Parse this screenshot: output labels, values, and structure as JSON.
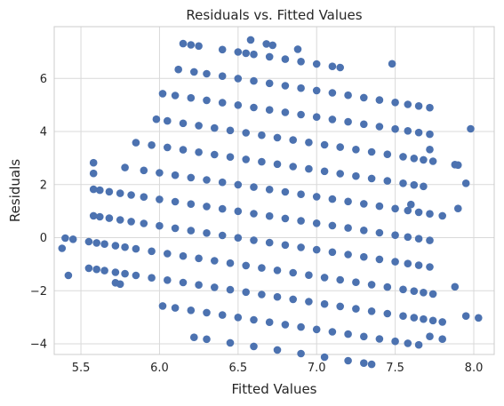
{
  "chart_data": {
    "type": "scatter",
    "title": "Residuals vs. Fitted Values",
    "xlabel": "Fitted Values",
    "ylabel": "Residuals",
    "xlim": [
      5.33,
      8.13
    ],
    "ylim": [
      -4.4,
      7.95
    ],
    "xticks": [
      5.5,
      6.0,
      6.5,
      7.0,
      7.5,
      8.0
    ],
    "xtick_labels": [
      "5.5",
      "6.0",
      "6.5",
      "7.0",
      "7.5",
      "8.0"
    ],
    "yticks": [
      -4,
      -2,
      0,
      2,
      4,
      6
    ],
    "ytick_labels": [
      "−4",
      "−2",
      "0",
      "2",
      "4",
      "6"
    ],
    "grid": true,
    "point_color": "#4c72b0",
    "bands": [
      {
        "intercept": -4,
        "x": [
          6.22,
          6.3,
          6.45,
          6.6,
          6.75,
          6.9,
          7.05,
          7.2,
          7.3,
          7.35
        ]
      },
      {
        "intercept": -3,
        "x": [
          6.02,
          6.1,
          6.2,
          6.3,
          6.4,
          6.5,
          6.6,
          6.7,
          6.8,
          6.9,
          7.0,
          7.1,
          7.2,
          7.3,
          7.4,
          7.5,
          7.58,
          7.65
        ]
      },
      {
        "intercept": -2,
        "x": [
          5.55,
          5.6,
          5.65,
          5.72,
          5.78,
          5.85,
          5.95,
          6.05,
          6.15,
          6.25,
          6.35,
          6.45,
          6.55,
          6.65,
          6.75,
          6.85,
          6.95,
          7.05,
          7.15,
          7.25,
          7.35,
          7.45,
          7.55,
          7.62,
          7.68,
          7.74,
          7.8
        ]
      },
      {
        "intercept": -1,
        "x": [
          5.4,
          5.45,
          5.55,
          5.6,
          5.65,
          5.72,
          5.78,
          5.85,
          5.95,
          6.05,
          6.15,
          6.25,
          6.35,
          6.45,
          6.55,
          6.65,
          6.75,
          6.85,
          6.95,
          7.05,
          7.15,
          7.25,
          7.35,
          7.45,
          7.55,
          7.62,
          7.68,
          7.74
        ]
      },
      {
        "intercept": 0,
        "x": [
          5.58,
          5.62,
          5.68,
          5.75,
          5.82,
          5.9,
          6.0,
          6.1,
          6.2,
          6.3,
          6.4,
          6.5,
          6.6,
          6.7,
          6.8,
          6.9,
          7.0,
          7.1,
          7.2,
          7.3,
          7.4,
          7.5,
          7.58,
          7.65,
          7.72
        ]
      },
      {
        "intercept": 1,
        "x": [
          5.58,
          5.62,
          5.68,
          5.75,
          5.82,
          5.9,
          6.0,
          6.1,
          6.2,
          6.3,
          6.4,
          6.5,
          6.6,
          6.7,
          6.8,
          6.9,
          7.0,
          7.1,
          7.2,
          7.3,
          7.4,
          7.5,
          7.58,
          7.65,
          7.72
        ]
      },
      {
        "intercept": 2,
        "x": [
          5.58,
          5.78,
          5.9,
          6.0,
          6.1,
          6.2,
          6.3,
          6.4,
          6.5,
          6.6,
          6.7,
          6.8,
          6.9,
          7.0,
          7.1,
          7.2,
          7.3,
          7.4,
          7.5,
          7.58,
          7.65,
          7.72,
          7.8
        ]
      },
      {
        "intercept": 3,
        "x": [
          5.85,
          5.95,
          6.05,
          6.15,
          6.25,
          6.35,
          6.45,
          6.55,
          6.65,
          6.75,
          6.85,
          6.95,
          7.05,
          7.15,
          7.25,
          7.35,
          7.45,
          7.55,
          7.62,
          7.68
        ]
      },
      {
        "intercept": 4,
        "x": [
          5.98,
          6.05,
          6.15,
          6.25,
          6.35,
          6.45,
          6.55,
          6.65,
          6.75,
          6.85,
          6.95,
          7.05,
          7.15,
          7.25,
          7.35,
          7.45,
          7.55,
          7.62,
          7.68,
          7.74,
          7.88,
          7.9
        ]
      },
      {
        "intercept": 5,
        "x": [
          6.02,
          6.1,
          6.2,
          6.3,
          6.4,
          6.5,
          6.6,
          6.7,
          6.8,
          6.9,
          7.0,
          7.1,
          7.2,
          7.3,
          7.4,
          7.5,
          7.58,
          7.65,
          7.72
        ]
      },
      {
        "intercept": 6,
        "x": [
          6.12,
          6.22,
          6.3,
          6.4,
          6.5,
          6.6,
          6.7,
          6.8,
          6.9,
          7.0,
          7.1,
          7.2,
          7.3,
          7.4,
          7.5,
          7.58,
          7.65,
          7.72
        ]
      },
      {
        "intercept": 7,
        "x": [
          6.15,
          6.2,
          6.25,
          6.4,
          6.5,
          6.55,
          6.6,
          6.7,
          6.8,
          6.9,
          7.0,
          7.1,
          7.15
        ]
      }
    ],
    "slope": -1.0,
    "band_center_x": 6.55,
    "outliers": [
      {
        "x": 5.38,
        "y": -0.4
      },
      {
        "x": 5.42,
        "y": -1.42
      },
      {
        "x": 5.58,
        "y": 2.42
      },
      {
        "x": 5.72,
        "y": -1.7
      },
      {
        "x": 5.75,
        "y": -1.75
      },
      {
        "x": 6.58,
        "y": 7.45
      },
      {
        "x": 6.68,
        "y": 7.3
      },
      {
        "x": 6.72,
        "y": 7.25
      },
      {
        "x": 6.88,
        "y": 7.1
      },
      {
        "x": 7.48,
        "y": 6.55
      },
      {
        "x": 7.6,
        "y": 1.25
      },
      {
        "x": 7.72,
        "y": 3.32
      },
      {
        "x": 7.72,
        "y": -3.72
      },
      {
        "x": 7.8,
        "y": -3.82
      },
      {
        "x": 7.88,
        "y": -1.85
      },
      {
        "x": 7.9,
        "y": 1.1
      },
      {
        "x": 7.95,
        "y": 2.05
      },
      {
        "x": 7.95,
        "y": -2.95
      },
      {
        "x": 8.03,
        "y": -3.02
      },
      {
        "x": 7.98,
        "y": 4.1
      }
    ]
  }
}
